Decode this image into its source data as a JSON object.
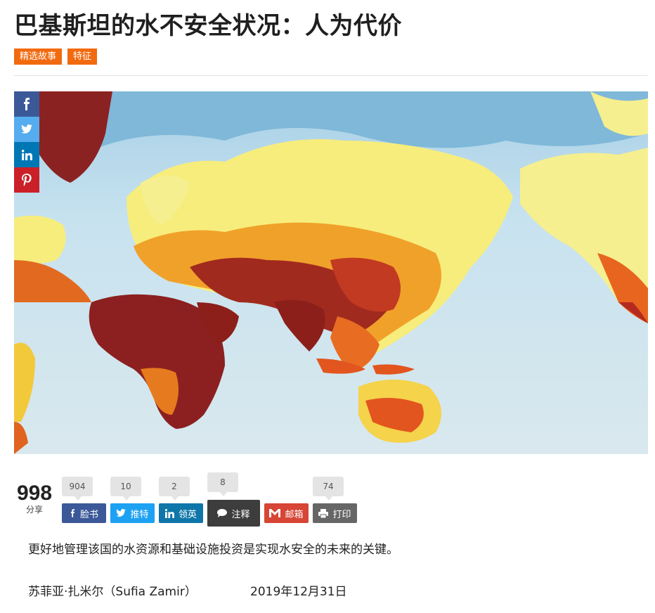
{
  "article": {
    "title": "巴基斯坦的水不安全状况：人为代价",
    "tags": [
      "精选故事",
      "特征"
    ],
    "lead": "更好地管理该国的水资源和基础设施投资是实现水安全的未来的关键。",
    "author": "苏菲亚·扎米尔（Sufia Zamir）",
    "date": "2019年12月31日"
  },
  "shares": {
    "total": "998",
    "total_label": "分享",
    "buttons": [
      {
        "label": "脸书",
        "count": "904",
        "color": "#3b5998",
        "icon": "facebook-icon"
      },
      {
        "label": "推特",
        "count": "10",
        "color": "#1da1f2",
        "icon": "twitter-icon"
      },
      {
        "label": "领英",
        "count": "2",
        "color": "#0e76a8",
        "icon": "linkedin-icon"
      },
      {
        "label": "注释",
        "count": "8",
        "color": "#3d3d3d",
        "icon": "comment-icon"
      },
      {
        "label": "邮箱",
        "count": "",
        "color": "#d64535",
        "icon": "mail-icon"
      },
      {
        "label": "打印",
        "count": "74",
        "color": "#666666",
        "icon": "print-icon"
      }
    ]
  },
  "side_share": [
    "facebook-icon",
    "twitter-icon",
    "linkedin-icon",
    "pinterest-icon"
  ]
}
